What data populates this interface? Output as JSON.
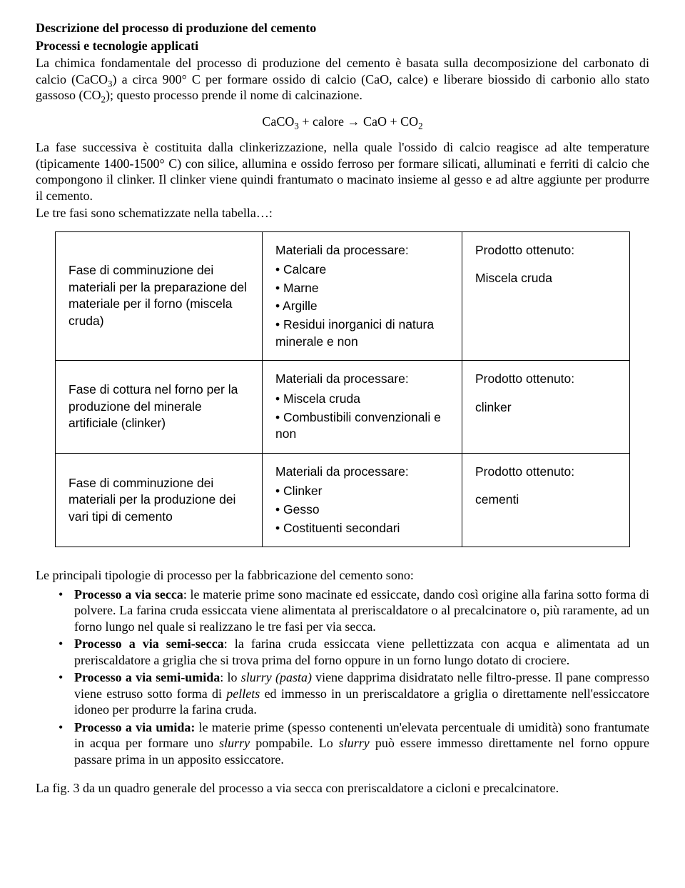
{
  "title1": "Descrizione del processo di produzione del cemento",
  "title2": "Processi e tecnologie applicati",
  "p1": "La chimica fondamentale del processo di produzione del cemento è basata sulla decomposizione del carbonato di calcio (CaCO",
  "p1_sub1": "3",
  "p1_b": ") a circa 900° C per formare ossido di calcio (CaO, calce) e liberare biossido di carbonio allo stato gassoso (CO",
  "p1_sub2": "2",
  "p1_c": "); questo processo prende il nome di calcinazione.",
  "formula_a": "CaCO",
  "formula_s1": "3",
  "formula_b": " + calore → CaO + CO",
  "formula_s2": "2",
  "p2": "La fase successiva è costituita dalla clinkerizzazione, nella quale l'ossido di calcio reagisce ad alte temperature (tipicamente 1400-1500° C) con silice, allumina e ossido ferroso per formare silicati, alluminati e ferriti di calcio che compongono il clinker. Il clinker viene quindi frantumato o macinato insieme al gesso e ad altre aggiunte per produrre il cemento.",
  "p3": "Le tre fasi sono schematizzate nella tabella…:",
  "table": {
    "rows": [
      {
        "phase": "Fase di comminuzione dei materiali per la preparazione del materiale per il forno (miscela cruda)",
        "materials_header": "Materiali da processare:",
        "materials": [
          "• Calcare",
          "• Marne",
          "• Argille",
          "• Residui inorganici di natura minerale e non"
        ],
        "product_header": "Prodotto ottenuto:",
        "product": "Miscela cruda"
      },
      {
        "phase": "Fase di cottura nel forno per la produzione del minerale artificiale (clinker)",
        "materials_header": "Materiali da processare:",
        "materials": [
          "• Miscela cruda",
          "• Combustibili convenzionali e non"
        ],
        "product_header": "Prodotto ottenuto:",
        "product": "clinker"
      },
      {
        "phase": "Fase di comminuzione dei materiali per la produzione dei vari tipi di cemento",
        "materials_header": "Materiali da processare:",
        "materials": [
          "• Clinker",
          "• Gesso",
          "• Costituenti secondari"
        ],
        "product_header": "Prodotto ottenuto:",
        "product": "cementi"
      }
    ]
  },
  "p4": "Le principali tipologie di processo per la fabbricazione del cemento sono:",
  "bullets": [
    {
      "lead": "Processo a via secca",
      "body_a": ": le materie prime sono macinate ed essiccate, dando così origine alla farina sotto forma di polvere. La farina cruda essiccata viene alimentata al preriscaldatore o al precalcinatore o, più raramente, ad un forno lungo nel quale si realizzano le tre fasi per via secca."
    },
    {
      "lead": "Processo a via semi-secca",
      "body_a": ": la farina cruda essiccata viene pellettizzata con acqua e alimentata ad un preriscaldatore a griglia che si trova prima del forno oppure in un forno lungo dotato di crociere."
    },
    {
      "lead": "Processo a via semi-umida",
      "body_a": ": lo ",
      "ital_1": "slurry (pasta)",
      "body_b": " viene dapprima disidratato nelle filtro-presse. Il pane compresso viene estruso sotto forma di ",
      "ital_2": "pellets",
      "body_c": " ed immesso in un preriscaldatore a griglia o direttamente nell'essiccatore idoneo per produrre la farina cruda."
    },
    {
      "lead": "Processo a via umida:",
      "body_a": " le materie prime (spesso contenenti un'elevata percentuale di umidità) sono frantumate in acqua per formare uno ",
      "ital_1": "slurry",
      "body_b": " pompabile. Lo ",
      "ital_2": "slurry",
      "body_c": " può essere immesso direttamente nel forno oppure passare prima in un apposito essiccatore."
    }
  ],
  "p5": "La fig. 3 da un quadro generale del processo a via secca con preriscaldatore a cicloni e precalcinatore."
}
